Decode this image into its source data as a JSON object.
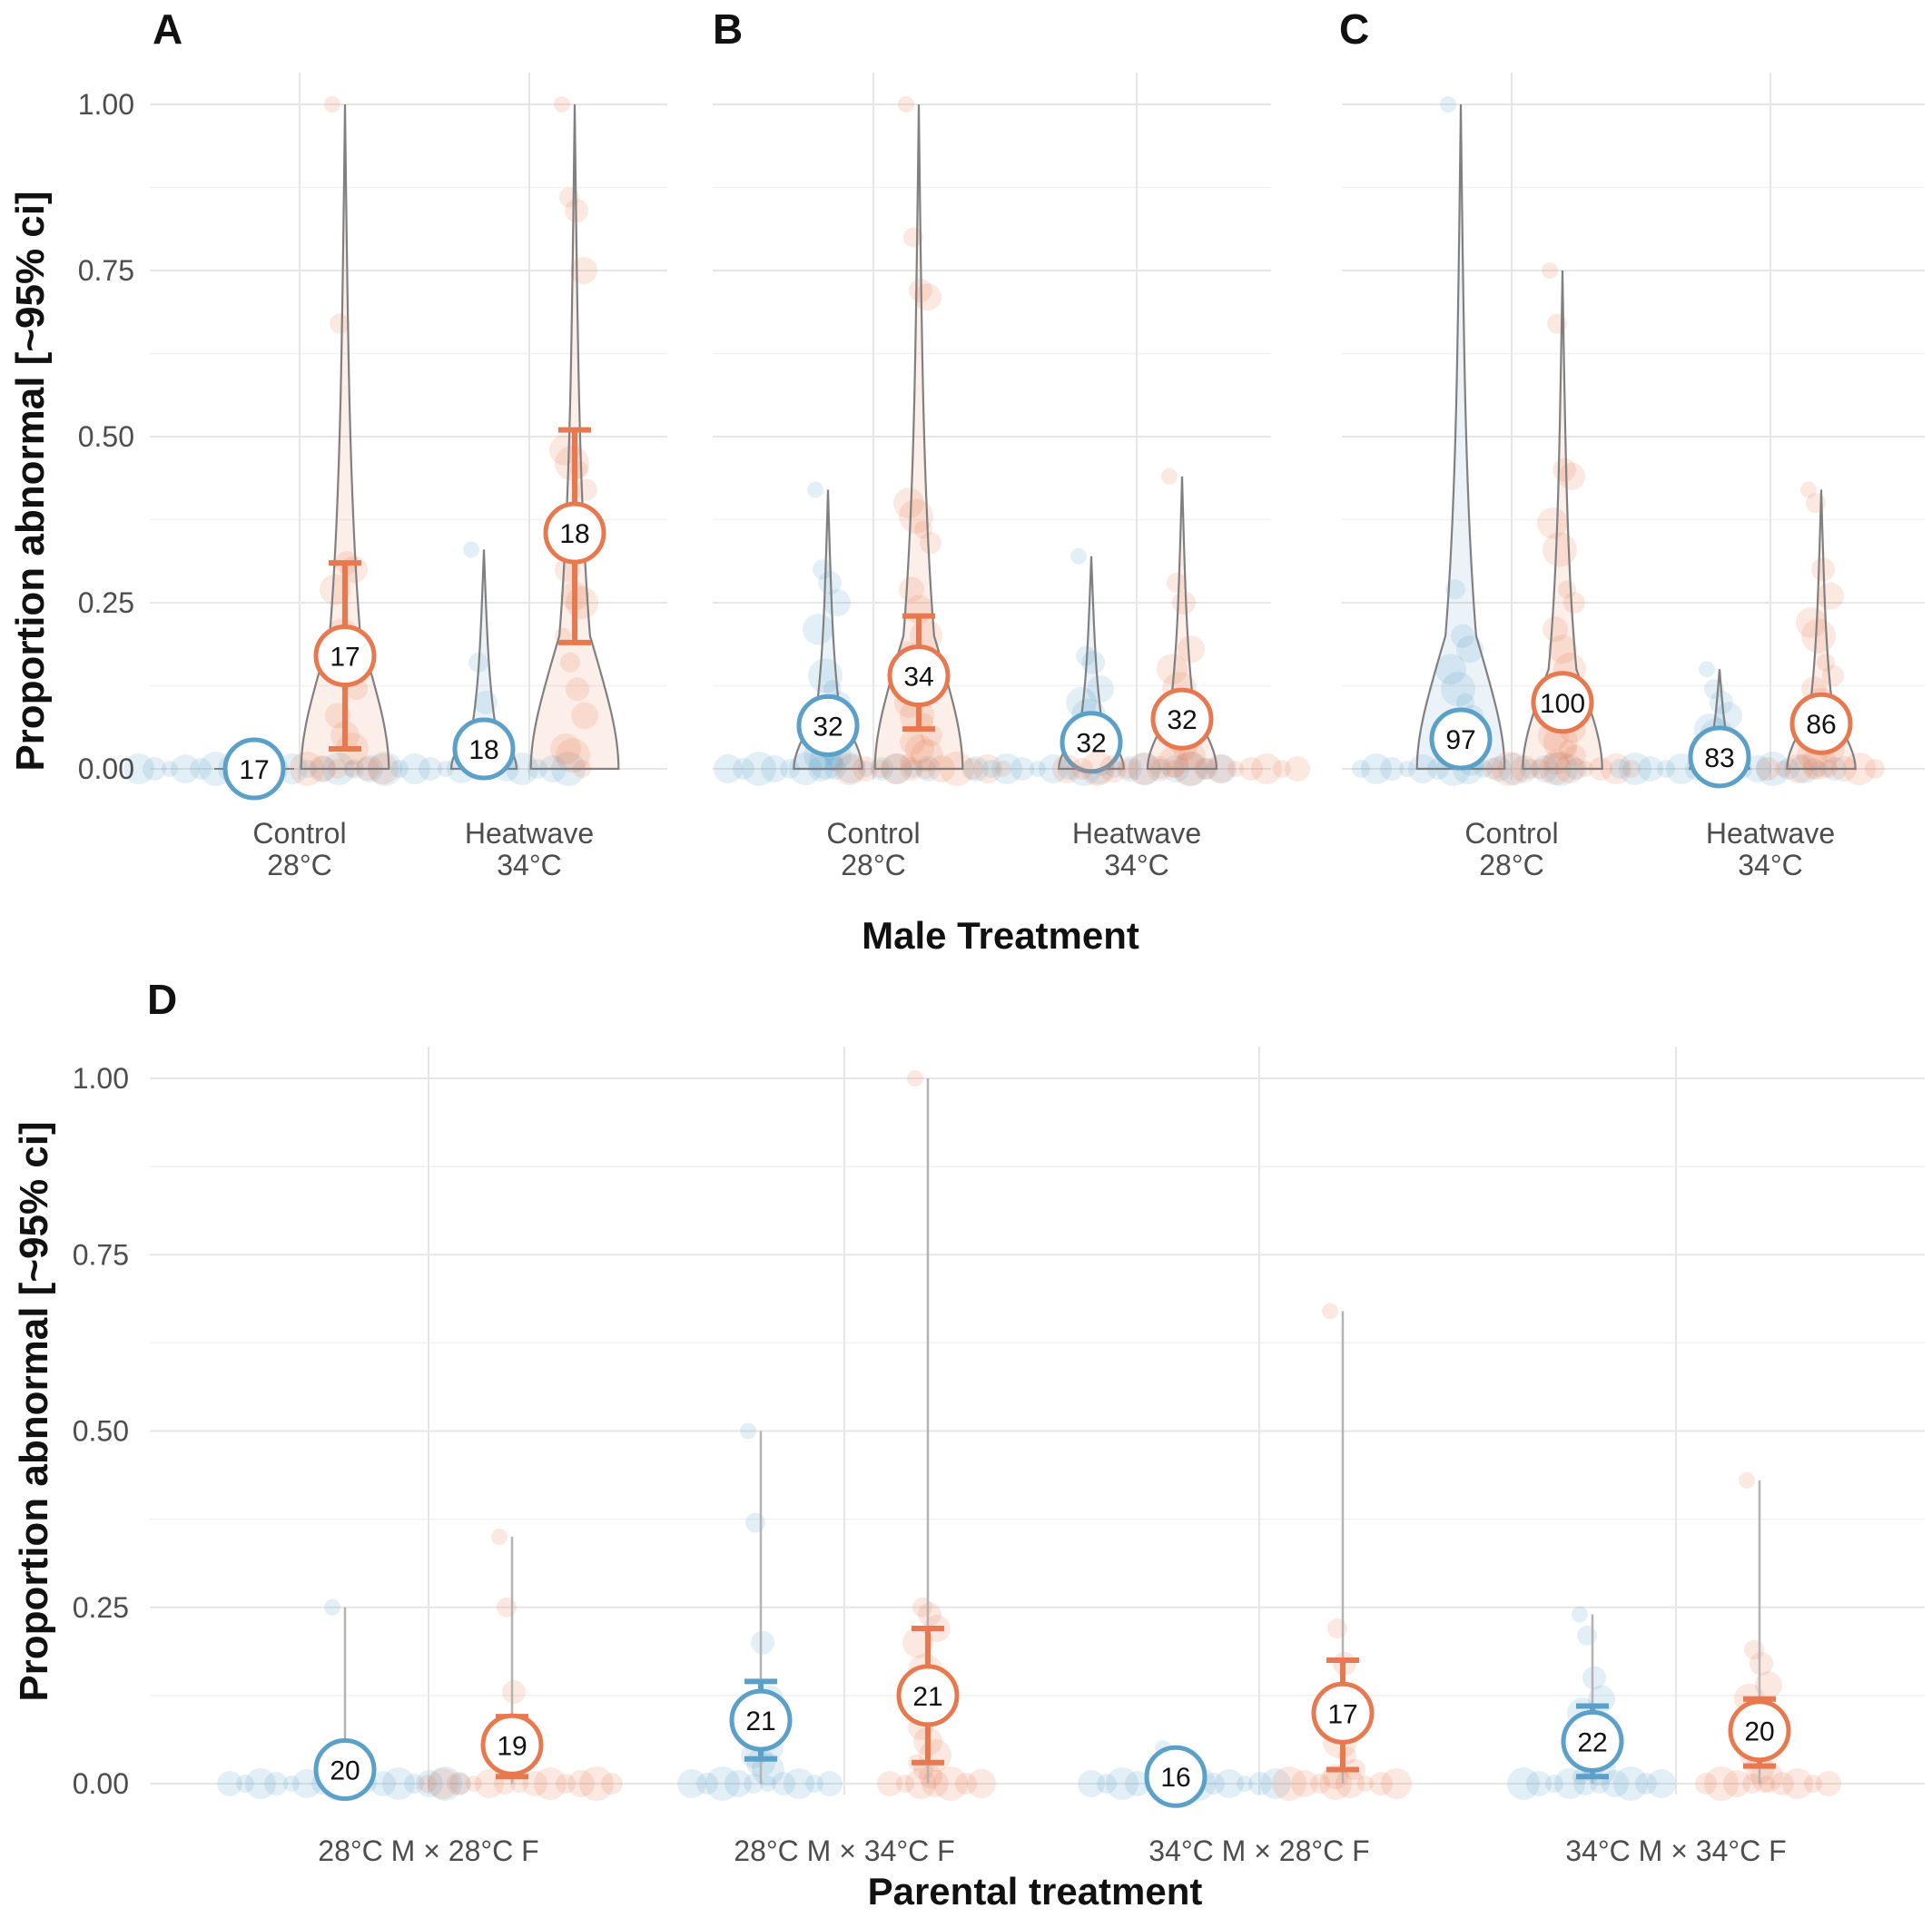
{
  "colors": {
    "male": "#5aa0c8",
    "female": "#e8794f",
    "violin": "#808080"
  },
  "axis_label_y": "Proportion abnormal [~95% ci]",
  "axis_label_x_top": "Male Treatment",
  "axis_label_x_bottom": "Parental treatment",
  "chart_data": [
    {
      "type": "violin",
      "panel": "A",
      "ylabel": "Proportion abnormal [~95% ci]",
      "ylim": [
        0,
        1
      ],
      "yticks": [
        "0.00",
        "0.25",
        "0.50",
        "0.75",
        "1.00"
      ],
      "categories": [
        [
          "Control",
          "28°C"
        ],
        [
          "Heatwave",
          "34°C"
        ]
      ],
      "groups": [
        {
          "cat": 0,
          "side": "male",
          "mean": 0.0,
          "lo": 0.0,
          "hi": 0.0,
          "n": "17",
          "max": 0.0,
          "points": [
            0,
            0,
            0,
            0,
            0,
            0,
            0,
            0,
            0,
            0,
            0,
            0,
            0,
            0,
            0,
            0,
            0
          ]
        },
        {
          "cat": 0,
          "side": "female",
          "mean": 0.17,
          "lo": 0.03,
          "hi": 0.31,
          "n": "17",
          "max": 1.0,
          "points": [
            1.0,
            0.67,
            0.31,
            0.3,
            0.27,
            0.2,
            0.17,
            0.12,
            0.08,
            0.05,
            0.03,
            0,
            0,
            0,
            0,
            0,
            0
          ]
        },
        {
          "cat": 1,
          "side": "male",
          "mean": 0.03,
          "lo": 0.0,
          "hi": 0.05,
          "n": "18",
          "max": 0.33,
          "points": [
            0.33,
            0.16,
            0.1,
            0.05,
            0.03,
            0.02,
            0,
            0,
            0,
            0,
            0,
            0,
            0,
            0,
            0,
            0,
            0,
            0
          ]
        },
        {
          "cat": 1,
          "side": "female",
          "mean": 0.355,
          "lo": 0.19,
          "hi": 0.51,
          "n": "18",
          "max": 1.0,
          "points": [
            1.0,
            0.86,
            0.84,
            0.75,
            0.48,
            0.46,
            0.45,
            0.42,
            0.3,
            0.26,
            0.25,
            0.2,
            0.16,
            0.12,
            0.08,
            0.03,
            0.02,
            0
          ]
        }
      ]
    },
    {
      "type": "violin",
      "panel": "B",
      "ylim": [
        0,
        1
      ],
      "categories": [
        [
          "Control",
          "28°C"
        ],
        [
          "Heatwave",
          "34°C"
        ]
      ],
      "groups": [
        {
          "cat": 0,
          "side": "male",
          "mean": 0.065,
          "lo": 0.04,
          "hi": 0.09,
          "n": "32",
          "max": 0.42,
          "points": [
            0.42,
            0.3,
            0.28,
            0.25,
            0.21,
            0.14,
            0.12,
            0.1,
            0.08,
            0.07,
            0.06,
            0.05,
            0.04,
            0.03,
            0.02,
            0.02,
            0.01,
            0.01,
            0,
            0,
            0,
            0,
            0,
            0,
            0,
            0,
            0,
            0,
            0,
            0,
            0,
            0
          ]
        },
        {
          "cat": 0,
          "side": "female",
          "mean": 0.14,
          "lo": 0.06,
          "hi": 0.23,
          "n": "34",
          "max": 1.0,
          "points": [
            1.0,
            0.8,
            0.72,
            0.71,
            0.4,
            0.38,
            0.36,
            0.34,
            0.27,
            0.24,
            0.2,
            0.18,
            0.16,
            0.14,
            0.12,
            0.1,
            0.08,
            0.07,
            0.05,
            0.04,
            0.03,
            0.02,
            0.01,
            0,
            0,
            0,
            0,
            0,
            0,
            0,
            0,
            0,
            0,
            0
          ]
        },
        {
          "cat": 1,
          "side": "male",
          "mean": 0.04,
          "lo": 0.02,
          "hi": 0.07,
          "n": "32",
          "max": 0.32,
          "points": [
            0.32,
            0.17,
            0.16,
            0.12,
            0.1,
            0.08,
            0.07,
            0.06,
            0.05,
            0.04,
            0.03,
            0.02,
            0.02,
            0.01,
            0.01,
            0,
            0,
            0,
            0,
            0,
            0,
            0,
            0,
            0,
            0,
            0,
            0,
            0,
            0,
            0,
            0,
            0
          ]
        },
        {
          "cat": 1,
          "side": "female",
          "mean": 0.075,
          "lo": 0.04,
          "hi": 0.11,
          "n": "32",
          "max": 0.44,
          "points": [
            0.44,
            0.28,
            0.25,
            0.18,
            0.15,
            0.12,
            0.1,
            0.09,
            0.08,
            0.07,
            0.06,
            0.05,
            0.04,
            0.03,
            0.02,
            0.01,
            0,
            0,
            0,
            0,
            0,
            0,
            0,
            0,
            0,
            0,
            0,
            0,
            0,
            0,
            0,
            0
          ]
        }
      ]
    },
    {
      "type": "violin",
      "panel": "C",
      "ylim": [
        0,
        1
      ],
      "categories": [
        [
          "Control",
          "28°C"
        ],
        [
          "Heatwave",
          "34°C"
        ]
      ],
      "groups": [
        {
          "cat": 0,
          "side": "male",
          "mean": 0.045,
          "lo": 0.03,
          "hi": 0.06,
          "n": "97",
          "max": 1.0,
          "points": [
            1.0,
            0.27,
            0.2,
            0.18,
            0.15,
            0.12,
            0.1,
            0.08,
            0.07,
            0.06,
            0.05,
            0.04,
            0.03,
            0.02,
            0.01,
            0,
            0,
            0,
            0,
            0,
            0,
            0,
            0,
            0,
            0,
            0,
            0,
            0,
            0,
            0
          ]
        },
        {
          "cat": 0,
          "side": "female",
          "mean": 0.1,
          "lo": 0.07,
          "hi": 0.13,
          "n": "100",
          "max": 0.75,
          "points": [
            0.75,
            0.67,
            0.45,
            0.44,
            0.37,
            0.33,
            0.27,
            0.25,
            0.21,
            0.18,
            0.15,
            0.12,
            0.1,
            0.08,
            0.06,
            0.05,
            0.04,
            0.03,
            0.02,
            0.01,
            0,
            0,
            0,
            0,
            0,
            0,
            0,
            0,
            0,
            0
          ]
        },
        {
          "cat": 1,
          "side": "male",
          "mean": 0.018,
          "lo": 0.01,
          "hi": 0.03,
          "n": "83",
          "max": 0.15,
          "points": [
            0.15,
            0.12,
            0.1,
            0.08,
            0.06,
            0.05,
            0.04,
            0.03,
            0.02,
            0.01,
            0,
            0,
            0,
            0,
            0,
            0,
            0,
            0,
            0,
            0,
            0,
            0,
            0,
            0,
            0
          ]
        },
        {
          "cat": 1,
          "side": "female",
          "mean": 0.068,
          "lo": 0.04,
          "hi": 0.09,
          "n": "86",
          "max": 0.42,
          "points": [
            0.42,
            0.4,
            0.3,
            0.26,
            0.22,
            0.2,
            0.16,
            0.14,
            0.12,
            0.1,
            0.08,
            0.06,
            0.05,
            0.04,
            0.03,
            0.02,
            0.01,
            0,
            0,
            0,
            0,
            0,
            0,
            0,
            0
          ]
        }
      ]
    },
    {
      "type": "dot",
      "panel": "D",
      "ylabel": "Proportion abnormal [~95% ci]",
      "xlabel": "Parental treatment",
      "ylim": [
        0,
        1
      ],
      "yticks": [
        "0.00",
        "0.25",
        "0.50",
        "0.75",
        "1.00"
      ],
      "categories": [
        "28°C M × 28°C F",
        "28°C M × 34°C F",
        "34°C M × 28°C F",
        "34°C M × 34°C F"
      ],
      "groups": [
        {
          "cat": 0,
          "side": "male",
          "mean": 0.02,
          "lo": null,
          "hi": null,
          "n": "20",
          "max": 0.25,
          "points": [
            0.25,
            0.05,
            0.03,
            0.02,
            0,
            0,
            0,
            0,
            0,
            0,
            0,
            0,
            0,
            0,
            0,
            0,
            0,
            0,
            0,
            0
          ]
        },
        {
          "cat": 0,
          "side": "female",
          "mean": 0.055,
          "lo": 0.01,
          "hi": 0.095,
          "n": "19",
          "max": 0.35,
          "points": [
            0.35,
            0.25,
            0.13,
            0.08,
            0.05,
            0.03,
            0,
            0,
            0,
            0,
            0,
            0,
            0,
            0,
            0,
            0,
            0,
            0,
            0
          ]
        },
        {
          "cat": 1,
          "side": "male",
          "mean": 0.09,
          "lo": 0.035,
          "hi": 0.145,
          "n": "21",
          "max": 0.5,
          "points": [
            0.5,
            0.37,
            0.2,
            0.12,
            0.1,
            0.08,
            0.06,
            0.05,
            0.04,
            0.03,
            0.02,
            0,
            0,
            0,
            0,
            0,
            0,
            0,
            0,
            0,
            0
          ]
        },
        {
          "cat": 1,
          "side": "female",
          "mean": 0.125,
          "lo": 0.03,
          "hi": 0.22,
          "n": "21",
          "max": 1.0,
          "points": [
            1.0,
            0.25,
            0.24,
            0.22,
            0.2,
            0.16,
            0.12,
            0.1,
            0.08,
            0.06,
            0.04,
            0.03,
            0.02,
            0.01,
            0,
            0,
            0,
            0,
            0,
            0,
            0
          ]
        },
        {
          "cat": 2,
          "side": "male",
          "mean": 0.01,
          "lo": null,
          "hi": null,
          "n": "16",
          "max": 0.05,
          "points": [
            0.05,
            0.02,
            0.01,
            0,
            0,
            0,
            0,
            0,
            0,
            0,
            0,
            0,
            0,
            0,
            0,
            0
          ]
        },
        {
          "cat": 2,
          "side": "female",
          "mean": 0.1,
          "lo": 0.02,
          "hi": 0.175,
          "n": "17",
          "max": 0.67,
          "points": [
            0.67,
            0.22,
            0.17,
            0.12,
            0.09,
            0.06,
            0.04,
            0.02,
            0.01,
            0,
            0,
            0,
            0,
            0,
            0,
            0,
            0
          ]
        },
        {
          "cat": 3,
          "side": "male",
          "mean": 0.06,
          "lo": 0.01,
          "hi": 0.11,
          "n": "22",
          "max": 0.24,
          "points": [
            0.24,
            0.21,
            0.15,
            0.12,
            0.1,
            0.08,
            0.06,
            0.05,
            0.04,
            0.03,
            0.02,
            0.01,
            0,
            0,
            0,
            0,
            0,
            0,
            0,
            0,
            0,
            0
          ]
        },
        {
          "cat": 3,
          "side": "female",
          "mean": 0.075,
          "lo": 0.025,
          "hi": 0.12,
          "n": "20",
          "max": 0.43,
          "points": [
            0.43,
            0.19,
            0.17,
            0.14,
            0.12,
            0.1,
            0.08,
            0.06,
            0.04,
            0.02,
            0.01,
            0,
            0,
            0,
            0,
            0,
            0,
            0,
            0,
            0
          ]
        }
      ]
    }
  ]
}
